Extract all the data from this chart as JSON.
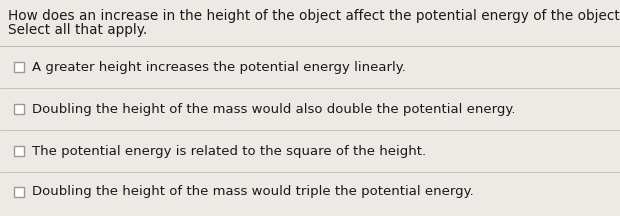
{
  "question_line1": "How does an increase in the height of the object affect the potential energy of the object?",
  "question_line2": "Select all that apply.",
  "options": [
    "A greater height increases the potential energy linearly.",
    "Doubling the height of the mass would also double the potential energy.",
    "The potential energy is related to the square of the height.",
    "Doubling the height of the mass would triple the potential energy."
  ],
  "bg_color": "#ddd8d2",
  "card_color": "#edeae6",
  "text_color": "#1a1a1a",
  "question_fontsize": 9.8,
  "option_fontsize": 9.5,
  "divider_color": "#bebab5",
  "checkbox_color": "#999999",
  "checkbox_fill": "#ffffff"
}
